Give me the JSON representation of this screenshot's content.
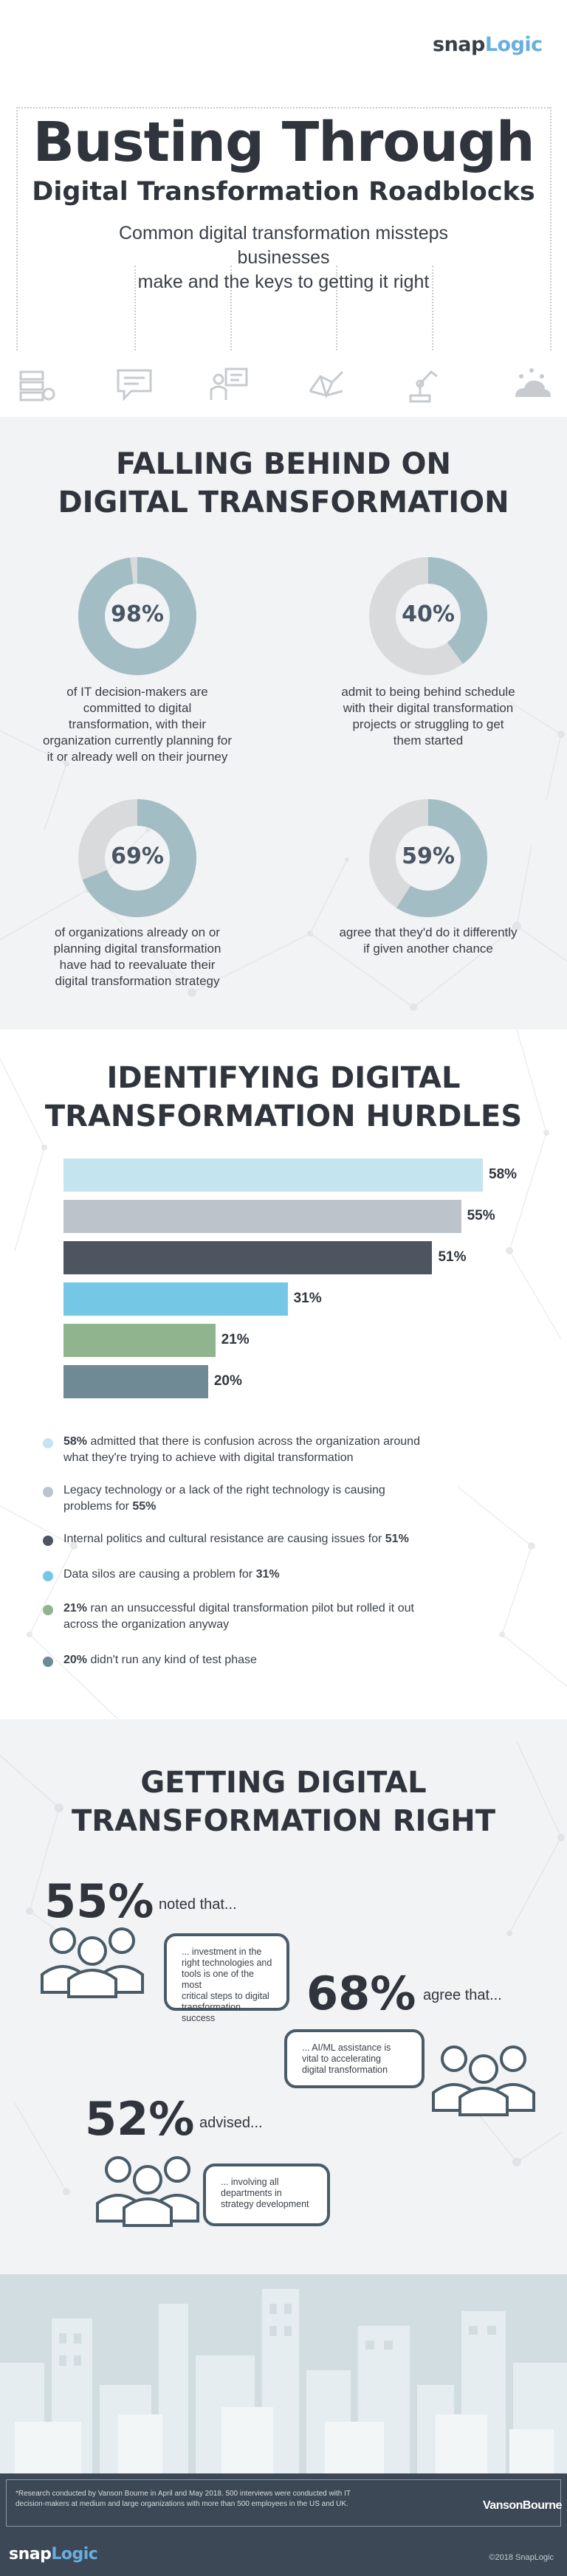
{
  "brand": {
    "logo_snap": "snap",
    "logo_logic": "Logic"
  },
  "header": {
    "title": "Busting Through",
    "subtitle": "Digital Transformation Roadblocks",
    "intro_line1": "Common digital transformation missteps businesses",
    "intro_line2": "make and the keys to getting it right",
    "icons": [
      "server-icon",
      "chat-icon",
      "presenter-icon",
      "network-icon",
      "robot-arm-icon",
      "cloud-icon"
    ]
  },
  "section1": {
    "title_line1": "FALLING BEHIND ON",
    "title_line2": "DIGITAL TRANSFORMATION",
    "stats": [
      {
        "value": "98%",
        "fraction": 0.98,
        "lines": [
          "of IT decision-makers are",
          "committed to digital",
          "transformation, with their",
          "organization currently planning for",
          "it or already well on their journey"
        ]
      },
      {
        "value": "40%",
        "fraction": 0.4,
        "lines": [
          "admit to being behind schedule",
          "with their digital transformation",
          "projects or struggling to get",
          "them started"
        ]
      },
      {
        "value": "69%",
        "fraction": 0.69,
        "lines": [
          "of organizations already on or",
          "planning digital transformation",
          "have had to reevaluate their",
          "digital transformation strategy"
        ]
      },
      {
        "value": "59%",
        "fraction": 0.59,
        "lines": [
          "agree that they'd do it differently",
          "if given another chance"
        ]
      }
    ],
    "colors": {
      "filled": "#a3bdc4",
      "empty": "#d9dadb",
      "hole": "#f1f3f4"
    }
  },
  "section2": {
    "title_line1": "IDENTIFYING DIGITAL",
    "title_line2": "TRANSFORMATION HURDLES",
    "chart_data": {
      "type": "bar",
      "orientation": "horizontal",
      "values": [
        58,
        55,
        51,
        31,
        21,
        20
      ],
      "value_labels": [
        "58%",
        "55%",
        "51%",
        "31%",
        "21%",
        "20%"
      ],
      "colors": [
        "#c4e4f0",
        "#bcc3ca",
        "#4e5460",
        "#74c8e6",
        "#8fb48e",
        "#6f8a94"
      ],
      "xlim": [
        0,
        58
      ]
    },
    "legend": [
      {
        "bold_prefix": "58%",
        "text": " admitted that there is confusion across the organization around",
        "line2": "what they're trying to achieve with digital transformation",
        "bold_suffix": ""
      },
      {
        "bold_prefix": "",
        "text": "Legacy technology or a lack of the right technology is causing",
        "line2": "problems for ",
        "bold_suffix": "55%"
      },
      {
        "bold_prefix": "",
        "text": "Internal politics and cultural resistance are causing issues for ",
        "line2": "",
        "bold_suffix": "51%"
      },
      {
        "bold_prefix": "",
        "text": "Data silos are causing a problem for ",
        "line2": "",
        "bold_suffix": "31%"
      },
      {
        "bold_prefix": "21%",
        "text": " ran an unsuccessful digital transformation pilot but rolled it out",
        "line2": "across the organization anyway",
        "bold_suffix": ""
      },
      {
        "bold_prefix": "20%",
        "text": " didn't run any kind of test phase",
        "line2": "",
        "bold_suffix": ""
      }
    ]
  },
  "section3": {
    "title_line1": "GETTING DIGITAL",
    "title_line2": "TRANSFORMATION RIGHT",
    "items": [
      {
        "pct": "55%",
        "note": "noted that...",
        "bubble_lines": [
          "... investment in the",
          "right technologies and",
          "tools is one of the most",
          "critical steps to digital",
          "transformation success"
        ]
      },
      {
        "pct": "68%",
        "note": "agree that...",
        "bubble_lines": [
          "... AI/ML assistance is",
          "vital to accelerating",
          "digital transformation"
        ]
      },
      {
        "pct": "52%",
        "note": "advised...",
        "bubble_lines": [
          "... involving all",
          "departments in",
          "strategy development"
        ]
      }
    ]
  },
  "footer": {
    "note_line1": "*Research conducted by Vanson Bourne in April and May 2018. 500 interviews were conducted with IT",
    "note_line2": "decision-makers at medium and large organizations with more than 500 employees in the US and UK.",
    "partner": "VansonBourne",
    "copyright": "©2018 SnapLogic"
  }
}
